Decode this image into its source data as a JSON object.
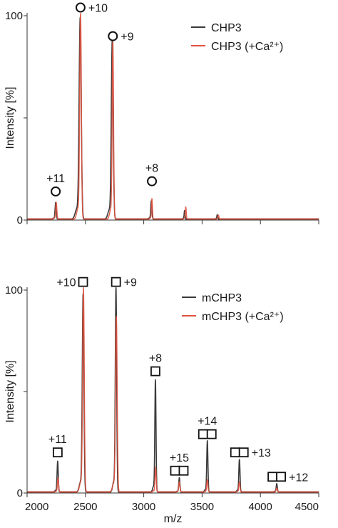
{
  "chart_data": [
    {
      "type": "line",
      "panel": "top",
      "xlabel": "",
      "ylabel": "Intensity [%]",
      "xlim": [
        2000,
        4500
      ],
      "ylim": [
        0,
        100
      ],
      "y_ticks": [
        0,
        50,
        100
      ],
      "y_tick_labels": [
        "0",
        "",
        "100"
      ],
      "x_ticks": [
        2000,
        2500,
        3000,
        3500,
        4000,
        4500
      ],
      "x_tick_labels": [
        "",
        "",
        "",
        "",
        "",
        ""
      ],
      "legend_position": "top-right",
      "series": [
        {
          "name": "CHP3",
          "color": "#3a3a3a",
          "peaks": [
            [
              2245,
              8,
              5
            ],
            [
              2455,
              98,
              9
            ],
            [
              2730,
              87,
              8
            ],
            [
              3065,
              9,
              5
            ],
            [
              3350,
              4,
              4
            ],
            [
              3630,
              2,
              4
            ]
          ]
        },
        {
          "name": "CHP3 (+Ca²⁺)",
          "color": "#e0533f",
          "peaks": [
            [
              2250,
              8,
              5
            ],
            [
              2458,
              100,
              7
            ],
            [
              2735,
              86,
              6
            ],
            [
              3070,
              10,
              4
            ],
            [
              3360,
              6,
              4
            ],
            [
              3640,
              2,
              4
            ]
          ]
        }
      ],
      "annotations": [
        {
          "x": 2245,
          "y": 14,
          "marker": "circle",
          "label": "+11",
          "label_side": "above"
        },
        {
          "x": 2458,
          "y": 104,
          "marker": "circle",
          "label": "+10",
          "label_side": "right"
        },
        {
          "x": 2735,
          "y": 90,
          "marker": "circle",
          "label": "+9",
          "label_side": "right"
        },
        {
          "x": 3070,
          "y": 19,
          "marker": "circle",
          "label": "+8",
          "label_side": "above"
        }
      ]
    },
    {
      "type": "line",
      "panel": "bottom",
      "xlabel": "m/z",
      "ylabel": "Intensity [%]",
      "xlim": [
        2000,
        4500
      ],
      "ylim": [
        0,
        100
      ],
      "y_ticks": [
        0,
        50,
        100
      ],
      "y_tick_labels": [
        "0",
        "",
        "100"
      ],
      "x_ticks": [
        2000,
        2500,
        3000,
        3500,
        4000,
        4500
      ],
      "x_tick_labels": [
        "2000",
        "2500",
        "3000",
        "3500",
        "4000",
        "4500"
      ],
      "legend_position": "top-right",
      "series": [
        {
          "name": "mCHP3",
          "color": "#3a3a3a",
          "peaks": [
            [
              2262,
              15,
              5
            ],
            [
              2480,
              97,
              7
            ],
            [
              2762,
              100,
              6
            ],
            [
              3100,
              55,
              5
            ],
            [
              3305,
              7,
              5
            ],
            [
              3545,
              25,
              5
            ],
            [
              3820,
              16,
              5
            ],
            [
              4140,
              4,
              5
            ]
          ]
        },
        {
          "name": "mCHP3 (+Ca²⁺)",
          "color": "#e0533f",
          "peaks": [
            [
              2265,
              7,
              5
            ],
            [
              2483,
              100,
              7
            ],
            [
              2765,
              86,
              7
            ],
            [
              3102,
              12,
              5
            ],
            [
              3305,
              5,
              5
            ],
            [
              3545,
              6,
              5
            ],
            [
              3820,
              5,
              5
            ],
            [
              4140,
              2,
              5
            ]
          ]
        }
      ],
      "annotations": [
        {
          "x": 2262,
          "y": 20,
          "marker": "square",
          "count": 1,
          "label": "+11",
          "label_side": "above"
        },
        {
          "x": 2480,
          "y": 104,
          "marker": "square",
          "count": 1,
          "label": "+10",
          "label_side": "left"
        },
        {
          "x": 2762,
          "y": 104,
          "marker": "square",
          "count": 1,
          "label": "+9",
          "label_side": "right"
        },
        {
          "x": 3100,
          "y": 60,
          "marker": "square",
          "count": 1,
          "label": "+8",
          "label_side": "above"
        },
        {
          "x": 3305,
          "y": 11,
          "marker": "square",
          "count": 2,
          "label": "+15",
          "label_side": "above"
        },
        {
          "x": 3545,
          "y": 29,
          "marker": "square",
          "count": 2,
          "label": "+14",
          "label_side": "above"
        },
        {
          "x": 3820,
          "y": 20,
          "marker": "square",
          "count": 2,
          "label": "+13",
          "label_side": "right"
        },
        {
          "x": 4140,
          "y": 8,
          "marker": "square",
          "count": 2,
          "label": "+12",
          "label_side": "right"
        }
      ]
    }
  ]
}
